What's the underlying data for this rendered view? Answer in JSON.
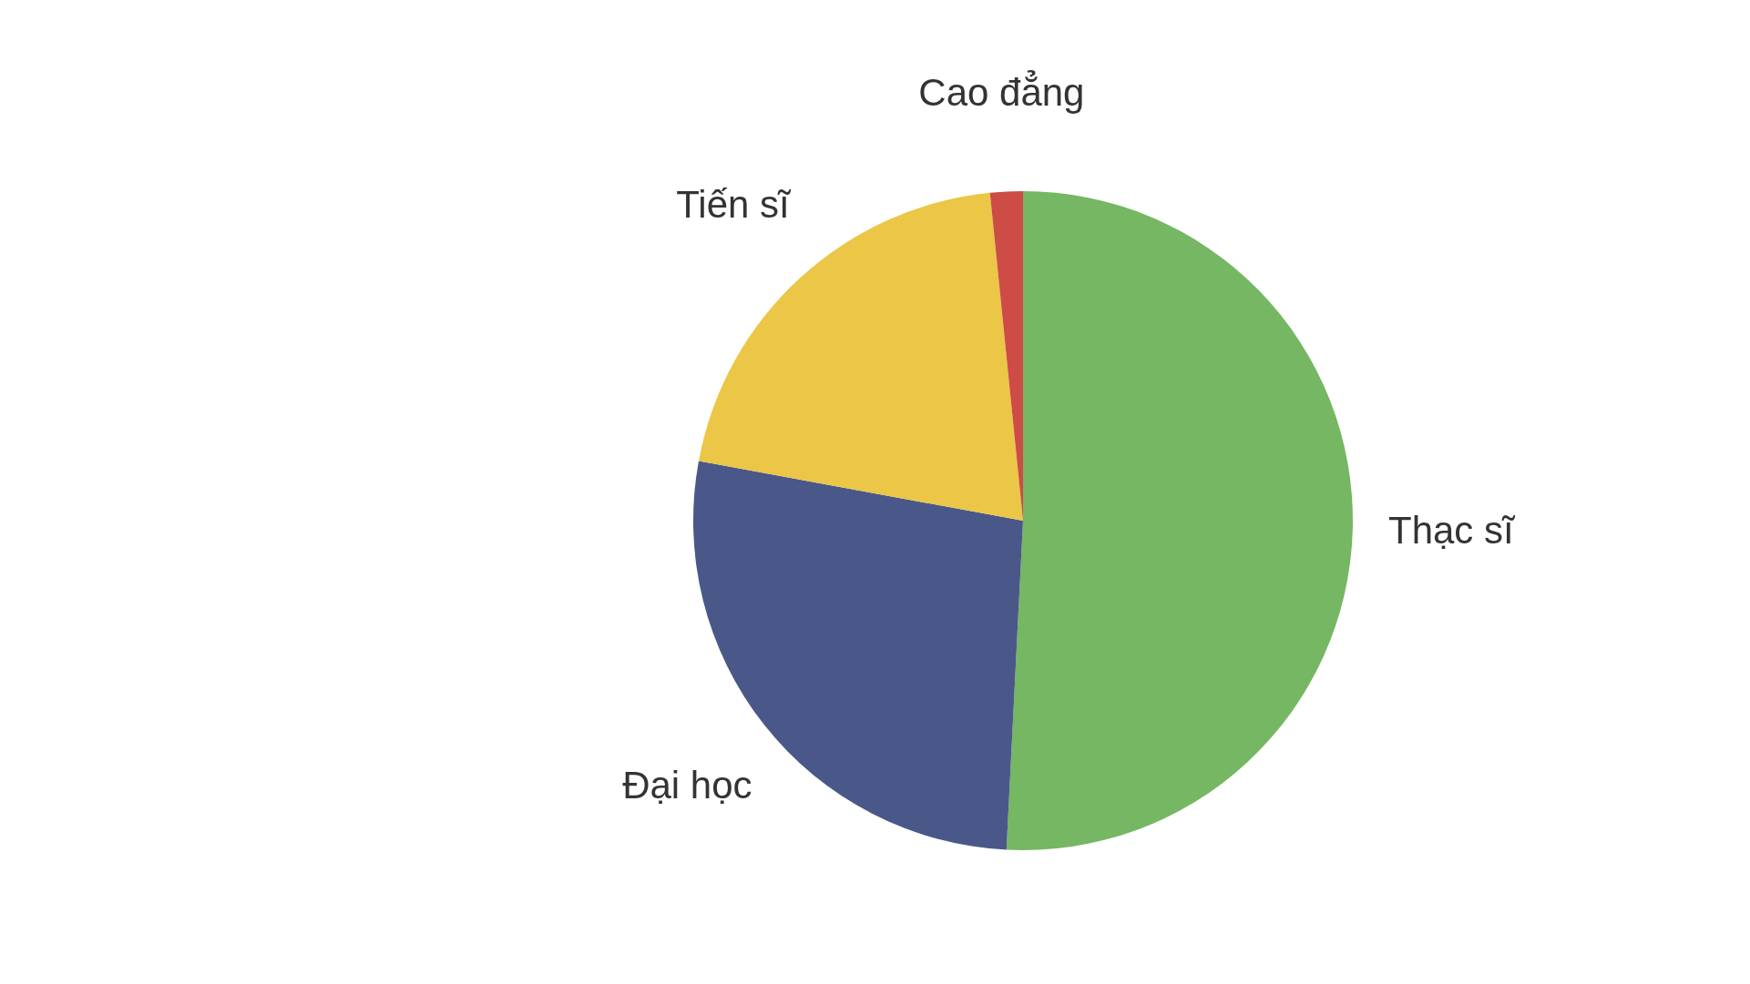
{
  "chart_data": {
    "type": "pie",
    "categories": [
      "Thạc sĩ",
      "Đại học",
      "Tiến sĩ",
      "Cao đẳng"
    ],
    "values": [
      50.8,
      27.1,
      20.5,
      1.6
    ],
    "colors": [
      "#75b762",
      "#4a5889",
      "#ebc647",
      "#cd4c46"
    ]
  }
}
